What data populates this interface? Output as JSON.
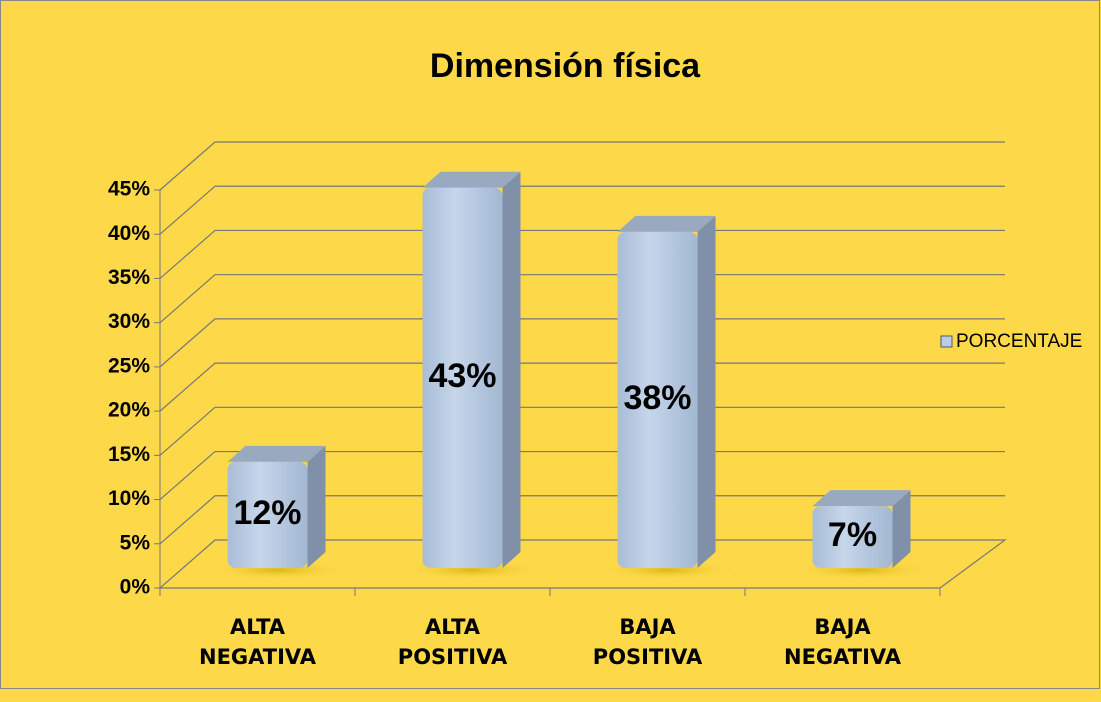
{
  "chart_data": {
    "type": "bar3d",
    "title": "Dimensión física",
    "categories": [
      "ALTA NEGATIVA",
      "ALTA POSITIVA",
      "BAJA POSITIVA",
      "BAJA NEGATIVA"
    ],
    "series": [
      {
        "name": "PORCENTAJE",
        "color": "#b9cde5",
        "values": [
          12,
          43,
          38,
          7
        ],
        "value_labels": [
          "12%",
          "43%",
          "38%",
          "7%"
        ]
      }
    ],
    "ylim": [
      0,
      45
    ],
    "yticks": [
      {
        "value": 0,
        "label": "0%"
      },
      {
        "value": 5,
        "label": "5%"
      },
      {
        "value": 10,
        "label": "10%"
      },
      {
        "value": 15,
        "label": "15%"
      },
      {
        "value": 20,
        "label": "20%"
      },
      {
        "value": 25,
        "label": "25%"
      },
      {
        "value": 30,
        "label": "30%"
      },
      {
        "value": 35,
        "label": "35%"
      },
      {
        "value": 40,
        "label": "40%"
      },
      {
        "value": 45,
        "label": "45%"
      }
    ],
    "grid": true,
    "legend": "right"
  }
}
